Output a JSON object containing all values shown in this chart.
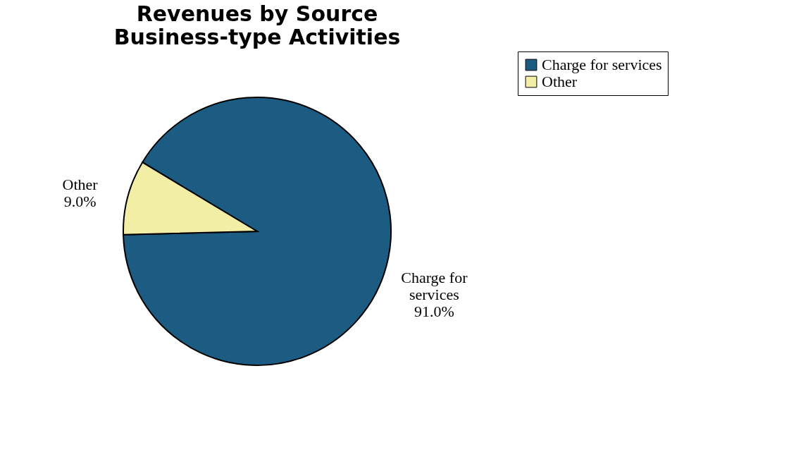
{
  "chart_data": {
    "type": "pie",
    "title": "Revenues by Source",
    "subtitle": "Business-type Activities",
    "categories": [
      "Charge for services",
      "Other"
    ],
    "values": [
      91.0,
      9.0
    ],
    "colors": [
      "#1d5c82",
      "#f3eea6"
    ],
    "value_labels": [
      "91.0%",
      "9.0%"
    ],
    "legend": "top right"
  }
}
